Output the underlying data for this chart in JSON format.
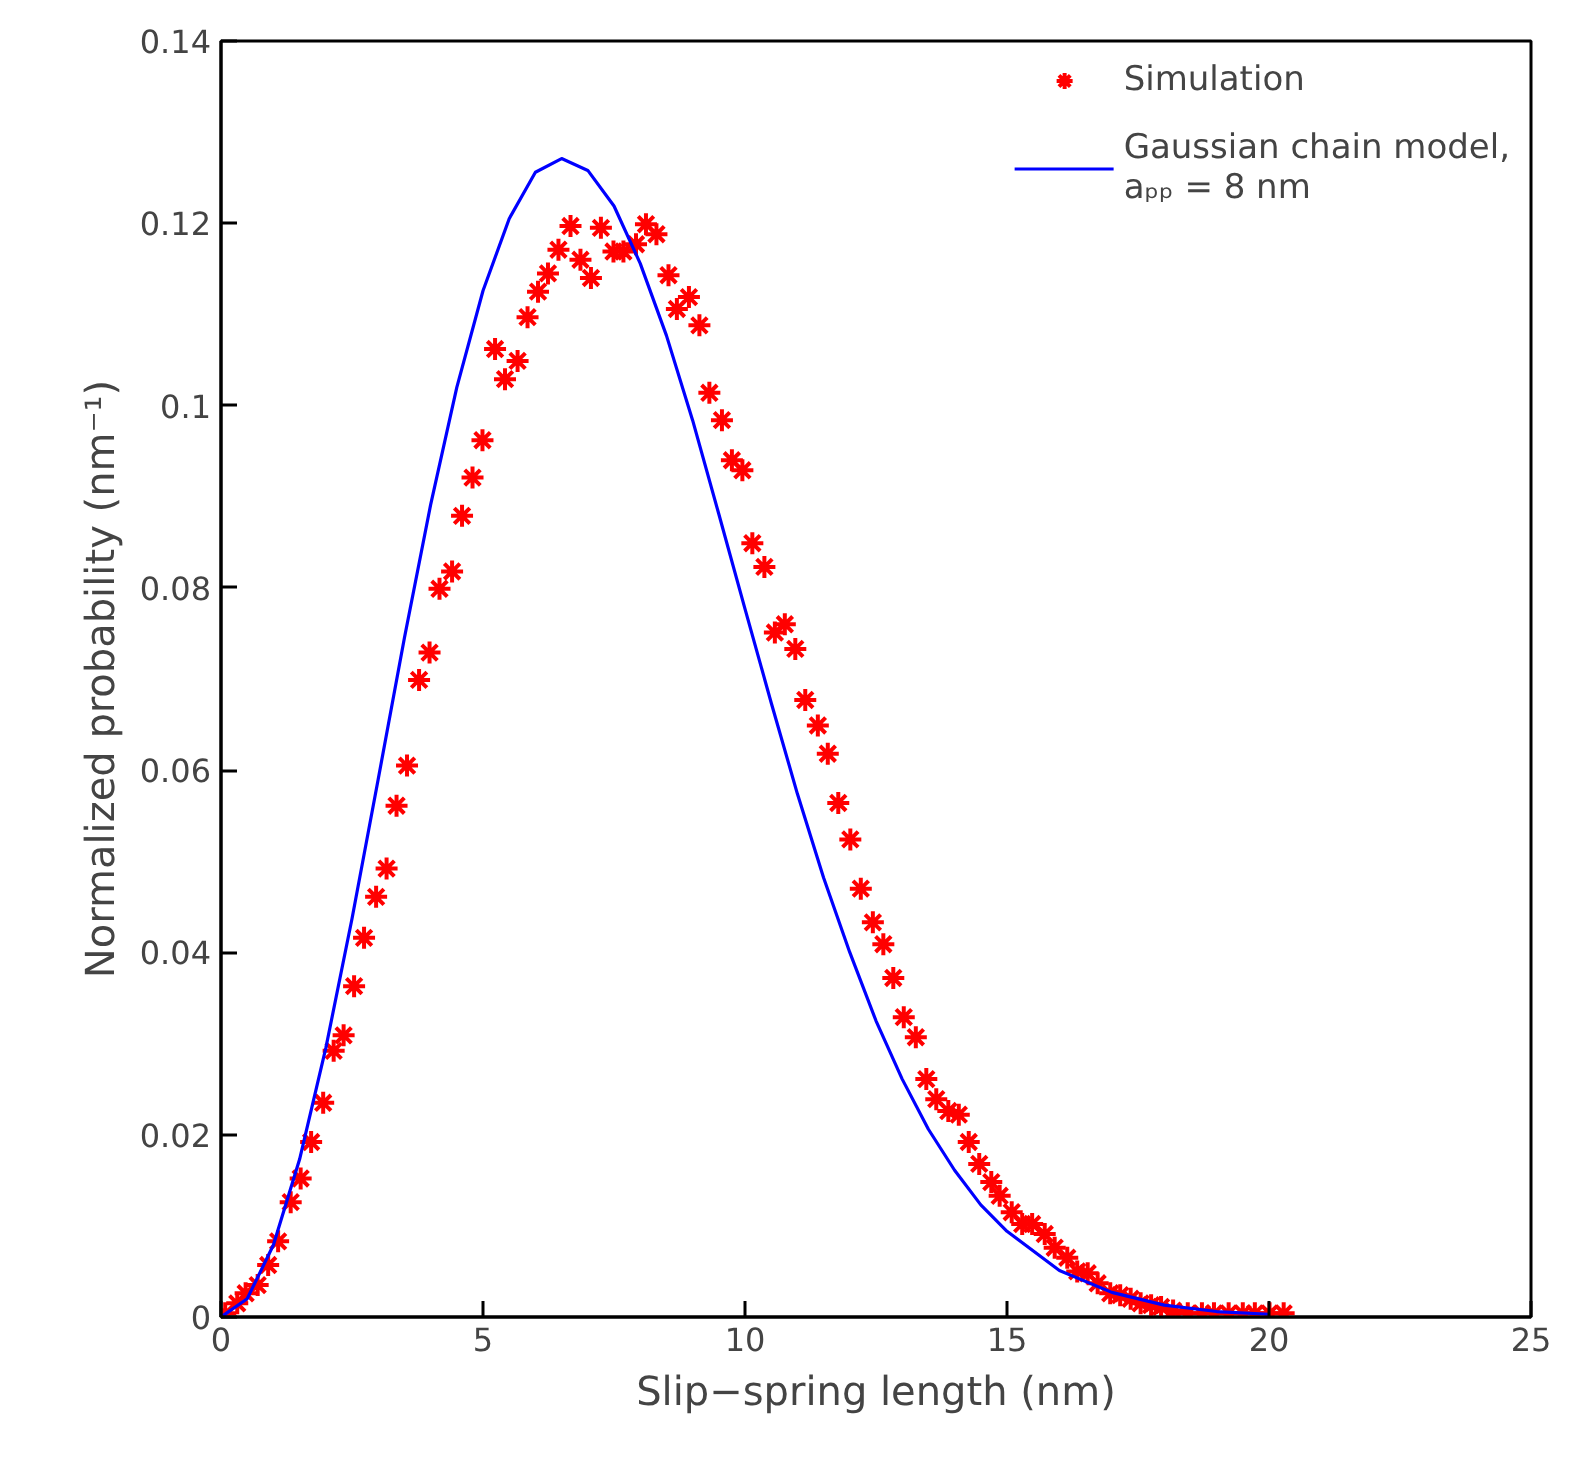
{
  "chart_data": {
    "type": "scatter",
    "xlabel": "Slip−spring length (nm)",
    "ylabel": "Normalized probability (nm⁻¹)",
    "xlim": [
      0,
      25
    ],
    "ylim": [
      0,
      0.14
    ],
    "xticks": [
      0,
      5,
      10,
      15,
      20,
      25
    ],
    "yticks": [
      0,
      0.02,
      0.04,
      0.06,
      0.08,
      0.1,
      0.12,
      0.14
    ],
    "grid": false,
    "legend": "top right",
    "series": [
      {
        "name": "Simulation",
        "marker": "cross",
        "color": "#ff0000",
        "x": [
          0.08,
          0.31,
          0.47,
          0.7,
          0.9,
          1.09,
          1.33,
          1.52,
          1.72,
          1.95,
          2.15,
          2.34,
          2.54,
          2.73,
          2.96,
          3.16,
          3.35,
          3.55,
          3.78,
          3.98,
          4.17,
          4.41,
          4.6,
          4.8,
          4.99,
          5.23,
          5.42,
          5.66,
          5.85,
          6.05,
          6.24,
          6.44,
          6.67,
          6.86,
          7.06,
          7.25,
          7.49,
          7.68,
          7.92,
          8.11,
          8.31,
          8.54,
          8.7,
          8.93,
          9.13,
          9.32,
          9.56,
          9.75,
          9.95,
          10.14,
          10.37,
          10.57,
          10.76,
          10.96,
          11.15,
          11.39,
          11.58,
          11.78,
          12.01,
          12.21,
          12.44,
          12.64,
          12.83,
          13.03,
          13.26,
          13.46,
          13.65,
          13.88,
          14.08,
          14.27,
          14.47,
          14.7,
          14.86,
          15.09,
          15.29,
          15.48,
          15.72,
          15.91,
          16.15,
          16.34,
          16.54,
          16.73,
          16.97,
          17.16,
          17.36,
          17.55,
          17.75,
          17.94,
          18.17,
          18.45,
          18.72,
          18.95,
          19.23,
          19.5,
          19.73,
          20.01,
          20.28
        ],
        "values": [
          0.0004,
          0.0015,
          0.0026,
          0.0035,
          0.0057,
          0.0083,
          0.0126,
          0.0152,
          0.0192,
          0.0235,
          0.0292,
          0.0309,
          0.0363,
          0.0416,
          0.0461,
          0.0492,
          0.0561,
          0.0605,
          0.0699,
          0.0729,
          0.0799,
          0.0818,
          0.0879,
          0.0921,
          0.0962,
          0.1062,
          0.1029,
          0.1049,
          0.1097,
          0.1125,
          0.1145,
          0.1171,
          0.1197,
          0.116,
          0.114,
          0.1195,
          0.1169,
          0.1169,
          0.1177,
          0.1199,
          0.1188,
          0.1143,
          0.1106,
          0.1119,
          0.1088,
          0.1014,
          0.0984,
          0.094,
          0.0929,
          0.0849,
          0.0823,
          0.0751,
          0.076,
          0.0733,
          0.0677,
          0.0649,
          0.0618,
          0.0564,
          0.0524,
          0.047,
          0.0433,
          0.0409,
          0.0372,
          0.0329,
          0.0307,
          0.0261,
          0.0239,
          0.0226,
          0.0222,
          0.0192,
          0.0168,
          0.0148,
          0.0133,
          0.0115,
          0.0102,
          0.0102,
          0.0091,
          0.0076,
          0.0065,
          0.005,
          0.0048,
          0.0037,
          0.0026,
          0.0024,
          0.002,
          0.0015,
          0.0013,
          0.0011,
          0.0007,
          0.0004,
          0.0004,
          0.0004,
          0.0004,
          0.0004,
          0.0004,
          0.0004,
          0.0004
        ]
      },
      {
        "name": "Gaussian chain model,\naₚₚ = 8 nm",
        "type": "line",
        "marker": "none",
        "line_style": "solid",
        "color": "#0000ff",
        "x": [
          0,
          0.5,
          1,
          1.5,
          2,
          2.5,
          3,
          3.5,
          4,
          4.5,
          5,
          5.5,
          6,
          6.5,
          7,
          7.5,
          8,
          8.5,
          9,
          9.5,
          10,
          10.5,
          11,
          11.5,
          12,
          12.5,
          13,
          13.5,
          14,
          14.5,
          15,
          16,
          17,
          18,
          19,
          20
        ],
        "values": [
          0,
          0.002,
          0.0079,
          0.0173,
          0.0295,
          0.0437,
          0.059,
          0.0745,
          0.0891,
          0.102,
          0.1126,
          0.1205,
          0.1256,
          0.1271,
          0.1258,
          0.1219,
          0.1156,
          0.1077,
          0.0984,
          0.0881,
          0.0777,
          0.0674,
          0.0574,
          0.0482,
          0.04,
          0.0325,
          0.0261,
          0.0206,
          0.0161,
          0.0123,
          0.0094,
          0.0051,
          0.0027,
          0.0013,
          0.0006,
          0.0003
        ]
      }
    ]
  }
}
